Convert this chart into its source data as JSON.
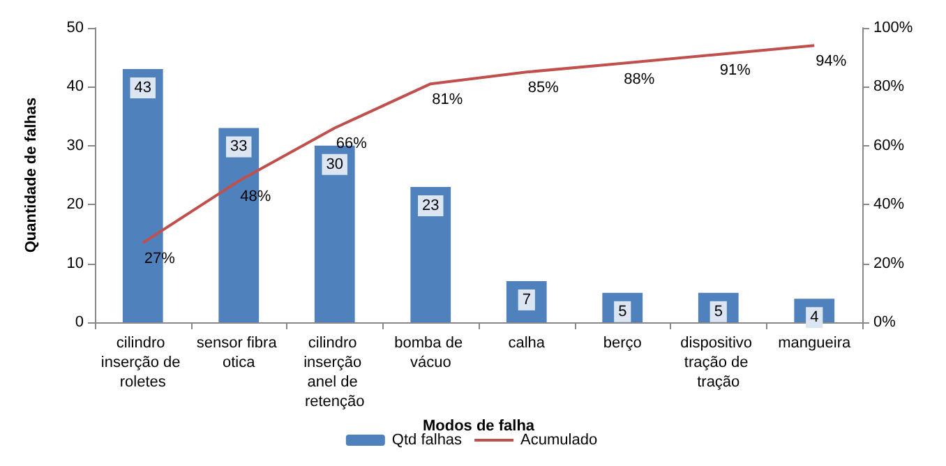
{
  "chart_data": {
    "type": "bar",
    "xlabel": "Modos de falha",
    "ylabel": "Quantidade de falhas",
    "categories": [
      "cilindro inserção de roletes",
      "sensor fibra otica",
      "cilindro inserção anel de retenção",
      "bomba de vácuo",
      "calha",
      "berço",
      "dispositivo tração de tração",
      "mangueira"
    ],
    "series": [
      {
        "name": "Qtd falhas",
        "color": "#4f81bd",
        "values": [
          43,
          33,
          30,
          23,
          7,
          5,
          5,
          4
        ],
        "value_labels": [
          "43",
          "33",
          "30",
          "23",
          "7",
          "5",
          "5",
          "4"
        ]
      },
      {
        "name": "Acumulado",
        "type": "line",
        "axis": "y2",
        "color": "#c0504d",
        "values": [
          27,
          48,
          66,
          81,
          85,
          88,
          91,
          94
        ],
        "value_labels": [
          "27%",
          "48%",
          "66%",
          "81%",
          "85%",
          "88%",
          "91%",
          "94%"
        ]
      }
    ],
    "ylim": [
      0,
      50
    ],
    "yticks": [
      0,
      10,
      20,
      30,
      40,
      50
    ],
    "y2lim": [
      0,
      100
    ],
    "y2ticks": [
      {
        "value": 0,
        "label": "0%"
      },
      {
        "value": 20,
        "label": "20%"
      },
      {
        "value": 40,
        "label": "40%"
      },
      {
        "value": 60,
        "label": "60%"
      },
      {
        "value": 80,
        "label": "80%"
      },
      {
        "value": 100,
        "label": "100%"
      }
    ],
    "grid": false,
    "legend": "bottom",
    "marker": "none",
    "line_style": "solid"
  }
}
